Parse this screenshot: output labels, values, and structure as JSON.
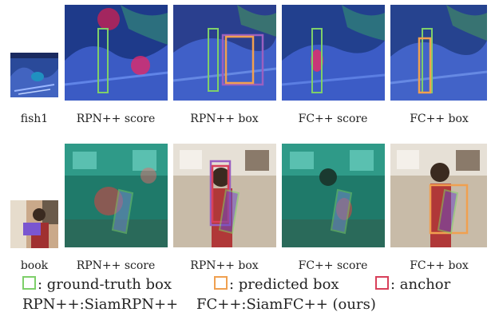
{
  "figure": {
    "rows": [
      {
        "thumb_label": "fish1",
        "panel_labels": [
          "RPN++ score",
          "RPN++ box",
          "FC++ score",
          "FC++ box"
        ]
      },
      {
        "thumb_label": "book",
        "panel_labels": [
          "RPN++ score",
          "RPN++ box",
          "FC++ score",
          "FC++ box"
        ]
      }
    ],
    "legend": {
      "items": [
        {
          "label": ": ground-truth box",
          "color": "#7ecf6a"
        },
        {
          "label": ": predicted box",
          "color": "#f0a050"
        },
        {
          "label": ": anchor",
          "color": "#d8405a"
        }
      ],
      "note_line": "RPN++:SiamRPN++    FC++:SiamFC++ (ours)"
    }
  }
}
